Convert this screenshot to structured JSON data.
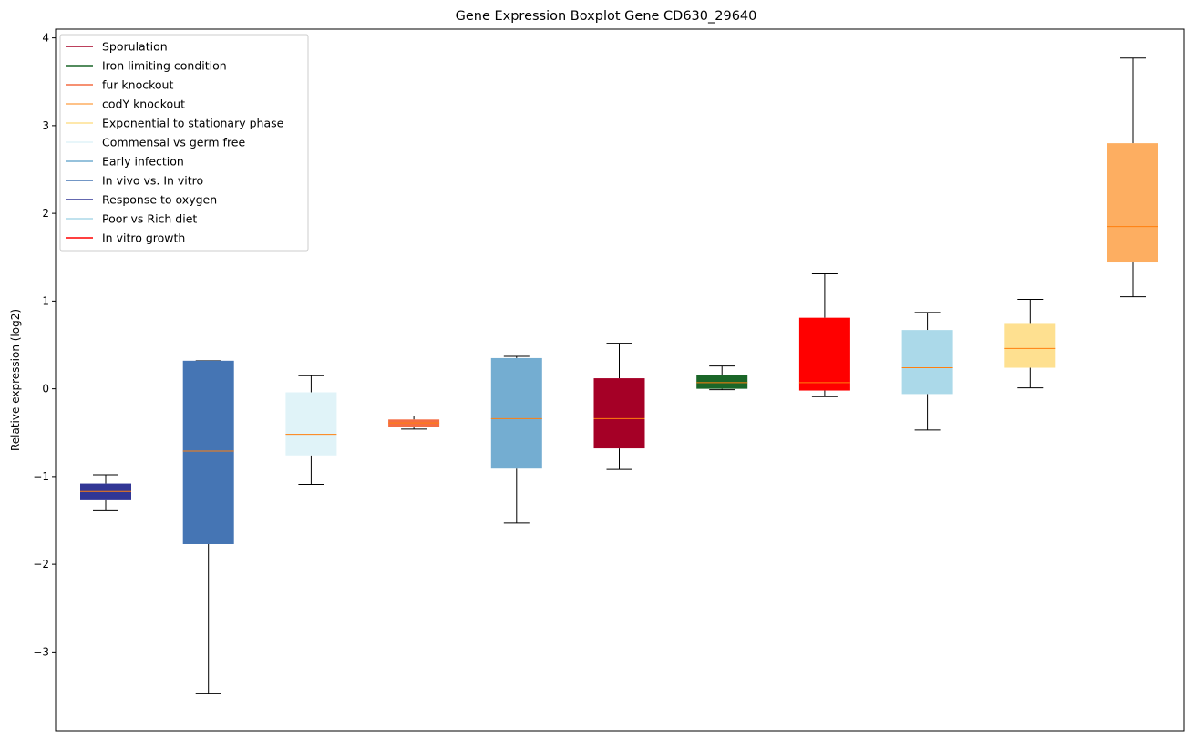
{
  "chart_data": {
    "type": "box",
    "title": "Gene Expression Boxplot Gene CD630_29640",
    "xlabel": "",
    "ylabel": "Relative expression (log2)",
    "ylim": [
      -3.9,
      4.1
    ],
    "yticks": [
      -3,
      -2,
      -1,
      0,
      1,
      2,
      3,
      4
    ],
    "ytick_labels": [
      "−3",
      "−2",
      "−1",
      "0",
      "1",
      "2",
      "3",
      "4"
    ],
    "grid": false,
    "legend_position": "top-left",
    "legend": [
      {
        "label": "Sporulation",
        "color": "#a50026"
      },
      {
        "label": "Iron limiting condition",
        "color": "#1a6628"
      },
      {
        "label": "fur knockout",
        "color": "#f46d43"
      },
      {
        "label": "codY knockout",
        "color": "#fdae61"
      },
      {
        "label": "Exponential to stationary phase",
        "color": "#fee090"
      },
      {
        "label": "Commensal vs germ free",
        "color": "#e0f3f8"
      },
      {
        "label": "Early infection",
        "color": "#74add1"
      },
      {
        "label": "In vivo vs. In vitro",
        "color": "#4575b4"
      },
      {
        "label": "Response to oxygen",
        "color": "#313695"
      },
      {
        "label": "Poor vs Rich diet",
        "color": "#abd9e9"
      },
      {
        "label": "In vitro growth",
        "color": "#ff0000"
      }
    ],
    "boxes": [
      {
        "group": "Response to oxygen",
        "color": "#313695",
        "whisker_low": -1.39,
        "q1": -1.27,
        "median": -1.17,
        "q3": -1.08,
        "whisker_high": -0.98
      },
      {
        "group": "In vivo vs. In vitro",
        "color": "#4575b4",
        "whisker_low": -3.47,
        "q1": -1.77,
        "median": -0.71,
        "q3": 0.32,
        "whisker_high": 0.32
      },
      {
        "group": "Commensal vs germ free",
        "color": "#e0f3f8",
        "whisker_low": -1.09,
        "q1": -0.76,
        "median": -0.52,
        "q3": -0.04,
        "whisker_high": 0.15
      },
      {
        "group": "fur knockout",
        "color": "#f46d43",
        "whisker_low": -0.46,
        "q1": -0.44,
        "median": -0.39,
        "q3": -0.35,
        "whisker_high": -0.31
      },
      {
        "group": "Early infection",
        "color": "#74add1",
        "whisker_low": -1.53,
        "q1": -0.91,
        "median": -0.34,
        "q3": 0.35,
        "whisker_high": 0.37
      },
      {
        "group": "Sporulation",
        "color": "#a50026",
        "whisker_low": -0.92,
        "q1": -0.68,
        "median": -0.34,
        "q3": 0.12,
        "whisker_high": 0.52
      },
      {
        "group": "Iron limiting condition",
        "color": "#1a6628",
        "whisker_low": -0.01,
        "q1": 0.0,
        "median": 0.07,
        "q3": 0.16,
        "whisker_high": 0.26
      },
      {
        "group": "In vitro growth",
        "color": "#ff0000",
        "whisker_low": -0.09,
        "q1": -0.02,
        "median": 0.07,
        "q3": 0.81,
        "whisker_high": 1.31
      },
      {
        "group": "Poor vs Rich diet",
        "color": "#abd9e9",
        "whisker_low": -0.47,
        "q1": -0.06,
        "median": 0.24,
        "q3": 0.67,
        "whisker_high": 0.87
      },
      {
        "group": "Exponential to stationary phase",
        "color": "#fee090",
        "whisker_low": 0.01,
        "q1": 0.24,
        "median": 0.46,
        "q3": 0.75,
        "whisker_high": 1.02
      },
      {
        "group": "codY knockout",
        "color": "#fdae61",
        "whisker_low": 1.05,
        "q1": 1.44,
        "median": 1.85,
        "q3": 2.8,
        "whisker_high": 3.77
      }
    ],
    "median_color": "#ff7f0e"
  }
}
